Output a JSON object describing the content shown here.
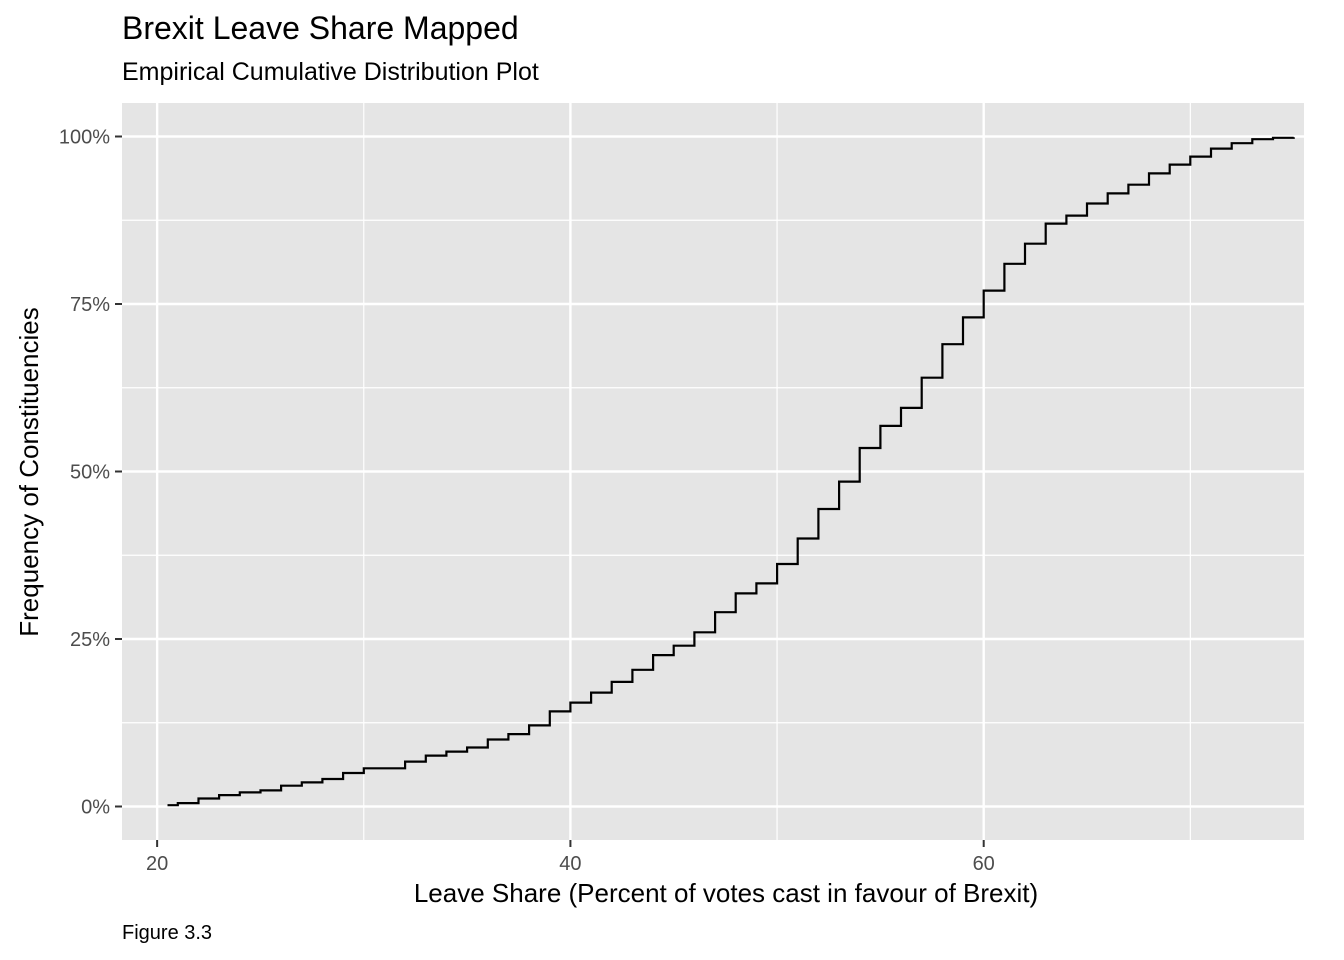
{
  "chart_data": {
    "type": "line",
    "title": "Brexit Leave Share Mapped",
    "subtitle": "Empirical Cumulative Distribution Plot",
    "caption": "Figure 3.3",
    "xlabel": "Leave Share (Percent of votes cast in favour of Brexit)",
    "ylabel": "Frequency of Constituencies",
    "xlim": [
      18.3,
      75.5
    ],
    "ylim": [
      -0.05,
      1.05
    ],
    "x_ticks": [
      20,
      40,
      60
    ],
    "x_tick_labels": [
      "20",
      "40",
      "60"
    ],
    "y_ticks": [
      0,
      0.25,
      0.5,
      0.75,
      1.0
    ],
    "y_tick_labels": [
      "0%",
      "25%",
      "50%",
      "75%",
      "100%"
    ],
    "grid": true,
    "series": [
      {
        "line_color": "#000000",
        "x": [
          20.5,
          21.0,
          22.0,
          23.0,
          24.0,
          25.0,
          26.0,
          27.0,
          28.0,
          29.0,
          30.0,
          31.0,
          32.0,
          33.0,
          34.0,
          35.0,
          36.0,
          37.0,
          38.0,
          39.0,
          40.0,
          41.0,
          42.0,
          43.0,
          44.0,
          45.0,
          46.0,
          47.0,
          48.0,
          49.0,
          50.0,
          51.0,
          52.0,
          53.0,
          54.0,
          55.0,
          56.0,
          57.0,
          58.0,
          59.0,
          60.0,
          61.0,
          62.0,
          63.0,
          64.0,
          65.0,
          66.0,
          67.0,
          68.0,
          69.0,
          70.0,
          71.0,
          72.0,
          73.0,
          74.0,
          75.0
        ],
        "y": [
          0.002,
          0.005,
          0.012,
          0.017,
          0.021,
          0.024,
          0.031,
          0.036,
          0.041,
          0.05,
          0.057,
          0.057,
          0.067,
          0.076,
          0.082,
          0.088,
          0.1,
          0.108,
          0.121,
          0.142,
          0.155,
          0.17,
          0.186,
          0.204,
          0.226,
          0.24,
          0.26,
          0.29,
          0.318,
          0.333,
          0.362,
          0.4,
          0.444,
          0.485,
          0.535,
          0.568,
          0.595,
          0.64,
          0.69,
          0.73,
          0.77,
          0.81,
          0.84,
          0.87,
          0.882,
          0.9,
          0.915,
          0.928,
          0.945,
          0.958,
          0.97,
          0.982,
          0.99,
          0.996,
          0.998,
          0.999
        ]
      }
    ]
  }
}
